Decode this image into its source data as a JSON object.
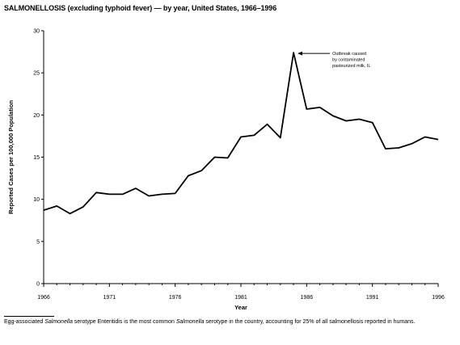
{
  "title": "SALMONELLOSIS (excluding typhoid fever) — by year, United States, 1966–1996",
  "chart_data": {
    "type": "line",
    "xlabel": "Year",
    "ylabel": "Reported Cases per 100,000 Population",
    "xlim": [
      1966,
      1996
    ],
    "ylim": [
      0,
      30
    ],
    "x_ticks": [
      1966,
      1971,
      1976,
      1981,
      1986,
      1991,
      1996
    ],
    "y_ticks": [
      0,
      5,
      10,
      15,
      20,
      25,
      30
    ],
    "grid": false,
    "legend": "none",
    "series": [
      {
        "x": [
          1966,
          1967,
          1968,
          1969,
          1970,
          1971,
          1972,
          1973,
          1974,
          1975,
          1976,
          1977,
          1978,
          1979,
          1980,
          1981,
          1982,
          1983,
          1984,
          1985,
          1986,
          1987,
          1988,
          1989,
          1990,
          1991,
          1992,
          1993,
          1994,
          1995,
          1996
        ],
        "values": [
          8.7,
          9.2,
          8.3,
          9.1,
          10.8,
          10.6,
          10.6,
          11.3,
          10.4,
          10.6,
          10.7,
          12.8,
          13.4,
          15.0,
          14.9,
          17.4,
          17.6,
          18.9,
          17.3,
          27.4,
          20.7,
          20.9,
          19.9,
          19.3,
          19.5,
          19.1,
          16.0,
          16.1,
          16.6,
          17.4,
          17.1
        ]
      }
    ],
    "annotation": {
      "lines": [
        "Outbreak caused",
        "by contaminated",
        "pasteurized milk, IL"
      ],
      "x": 1985,
      "y": 27.4
    }
  },
  "footnote": {
    "part1": "Egg-associated ",
    "italic1": "Salmonella",
    "part2": " serotype Enteritidis is the most common ",
    "italic2": "Salmonella",
    "part3": " serotype in the country, accounting for 25% of all salmonellosis reported in humans."
  }
}
